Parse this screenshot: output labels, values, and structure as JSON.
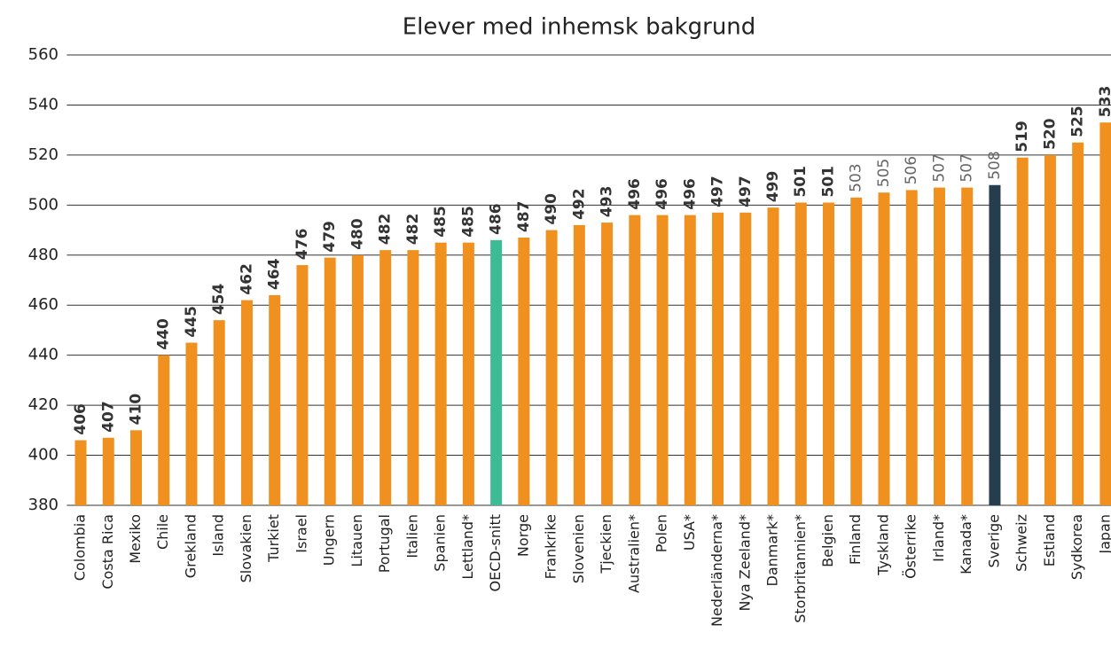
{
  "chart_data": {
    "type": "bar",
    "title": "Elever med inhemsk bakgrund",
    "categories": [
      "Colombia",
      "Costa Rica",
      "Mexiko",
      "Chile",
      "Grekland",
      "Island",
      "Slovakien",
      "Turkiet",
      "Israel",
      "Ungern",
      "Litauen",
      "Portugal",
      "Italien",
      "Spanien",
      "Lettland*",
      "OECD-snitt",
      "Norge",
      "Frankrike",
      "Slovenien",
      "Tjeckien",
      "Australien*",
      "Polen",
      "USA*",
      "Nederländerna*",
      "Nya Zeeland*",
      "Danmark*",
      "Storbritannien*",
      "Belgien",
      "Finland",
      "Tyskland",
      "Österrike",
      "Irland*",
      "Kanada*",
      "Sverige",
      "Schweiz",
      "Estland",
      "Sydkorea",
      "Japan"
    ],
    "values": [
      406,
      407,
      410,
      440,
      445,
      454,
      462,
      464,
      476,
      479,
      480,
      482,
      482,
      485,
      485,
      486,
      487,
      490,
      492,
      493,
      496,
      496,
      496,
      497,
      497,
      499,
      501,
      501,
      503,
      505,
      506,
      507,
      507,
      508,
      519,
      520,
      525,
      533
    ],
    "colors": [
      "#f0901e",
      "#f0901e",
      "#f0901e",
      "#f0901e",
      "#f0901e",
      "#f0901e",
      "#f0901e",
      "#f0901e",
      "#f0901e",
      "#f0901e",
      "#f0901e",
      "#f0901e",
      "#f0901e",
      "#f0901e",
      "#f0901e",
      "#3dbb94",
      "#f0901e",
      "#f0901e",
      "#f0901e",
      "#f0901e",
      "#f0901e",
      "#f0901e",
      "#f0901e",
      "#f0901e",
      "#f0901e",
      "#f0901e",
      "#f0901e",
      "#f0901e",
      "#f0901e",
      "#f0901e",
      "#f0901e",
      "#f0901e",
      "#f0901e",
      "#263d4e",
      "#f0901e",
      "#f0901e",
      "#f0901e",
      "#f0901e"
    ],
    "label_bold": [
      true,
      true,
      true,
      true,
      true,
      true,
      true,
      true,
      true,
      true,
      true,
      true,
      true,
      true,
      true,
      true,
      true,
      true,
      true,
      true,
      true,
      true,
      true,
      true,
      true,
      true,
      true,
      true,
      false,
      false,
      false,
      false,
      false,
      false,
      true,
      true,
      true,
      true
    ],
    "ylim": [
      380,
      560
    ],
    "yticks": [
      380,
      400,
      420,
      440,
      460,
      480,
      500,
      520,
      540,
      560
    ],
    "grid": true
  }
}
